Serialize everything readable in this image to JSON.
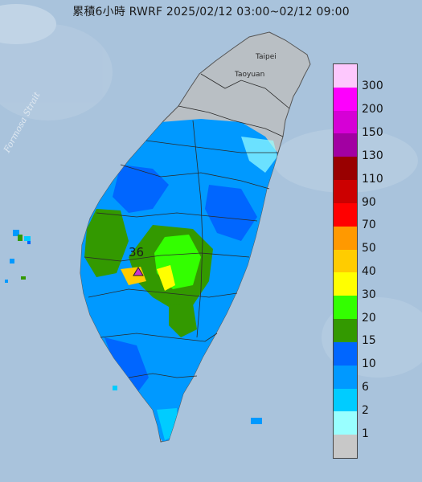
{
  "title": "累積6小時 RWRF 2025/02/12 03:00~02/12 09:00",
  "place_labels": {
    "strait": "Formosa Strait",
    "taipei": "Taipei",
    "taoyuan": "Taoyuan"
  },
  "max_value": "36",
  "max_marker_color": "#cc33cc",
  "legend": [
    {
      "label": "300",
      "color": "#fdc8fd"
    },
    {
      "label": "200",
      "color": "#fd00fd"
    },
    {
      "label": "150",
      "color": "#d600d6"
    },
    {
      "label": "130",
      "color": "#a200a2"
    },
    {
      "label": "110",
      "color": "#990000"
    },
    {
      "label": "90",
      "color": "#cc0000"
    },
    {
      "label": "70",
      "color": "#ff0000"
    },
    {
      "label": "50",
      "color": "#ff9900"
    },
    {
      "label": "40",
      "color": "#ffcc00"
    },
    {
      "label": "30",
      "color": "#ffff00"
    },
    {
      "label": "20",
      "color": "#33ff00"
    },
    {
      "label": "15",
      "color": "#339900"
    },
    {
      "label": "10",
      "color": "#0066ff"
    },
    {
      "label": "6",
      "color": "#0099ff"
    },
    {
      "label": "2",
      "color": "#00ccff"
    },
    {
      "label": "1",
      "color": "#99ffff"
    },
    {
      "label": "",
      "color": "#c8c8c8"
    }
  ]
}
